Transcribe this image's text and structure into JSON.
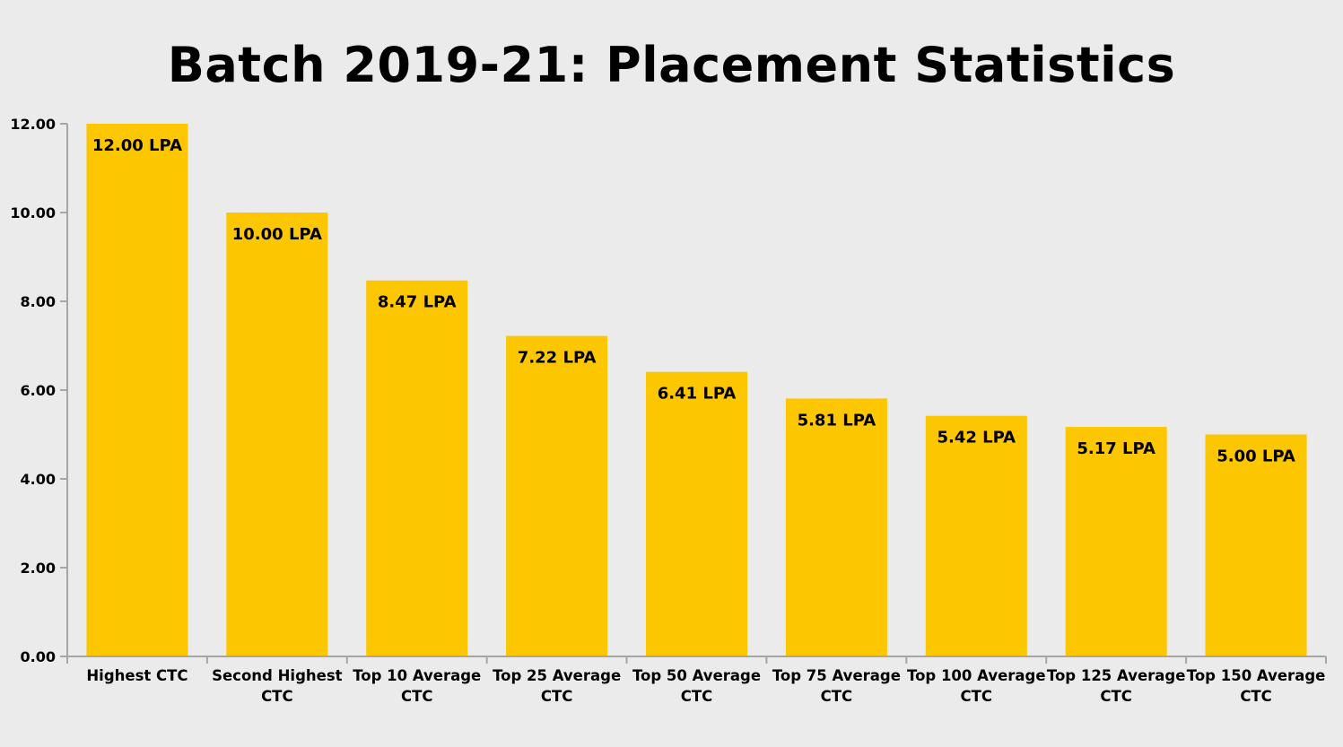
{
  "chart_data": {
    "type": "bar",
    "title": "Batch 2019-21: Placement Statistics",
    "xlabel": "",
    "ylabel": "",
    "ylim": [
      0,
      12
    ],
    "y_ticks": [
      "0.00",
      "2.00",
      "4.00",
      "6.00",
      "8.00",
      "10.00",
      "12.00"
    ],
    "y_tick_values": [
      0,
      2,
      4,
      6,
      8,
      10,
      12
    ],
    "grid": false,
    "bar_color": "#fcc600",
    "axis_color": "#a6a6a6",
    "categories": [
      [
        "Highest CTC"
      ],
      [
        "Second Highest",
        "CTC"
      ],
      [
        "Top 10 Average",
        "CTC"
      ],
      [
        "Top 25 Average",
        "CTC"
      ],
      [
        "Top 50 Average",
        "CTC"
      ],
      [
        "Top 75 Average",
        "CTC"
      ],
      [
        "Top 100 Average",
        "CTC"
      ],
      [
        "Top 125 Average",
        "CTC"
      ],
      [
        "Top 150 Average",
        "CTC"
      ]
    ],
    "values": [
      12.0,
      10.0,
      8.47,
      7.22,
      6.41,
      5.81,
      5.42,
      5.17,
      5.0
    ],
    "data_labels": [
      "12.00 LPA",
      "10.00 LPA",
      "8.47 LPA",
      "7.22 LPA",
      "6.41 LPA",
      "5.81 LPA",
      "5.42 LPA",
      "5.17 LPA",
      "5.00 LPA"
    ]
  }
}
